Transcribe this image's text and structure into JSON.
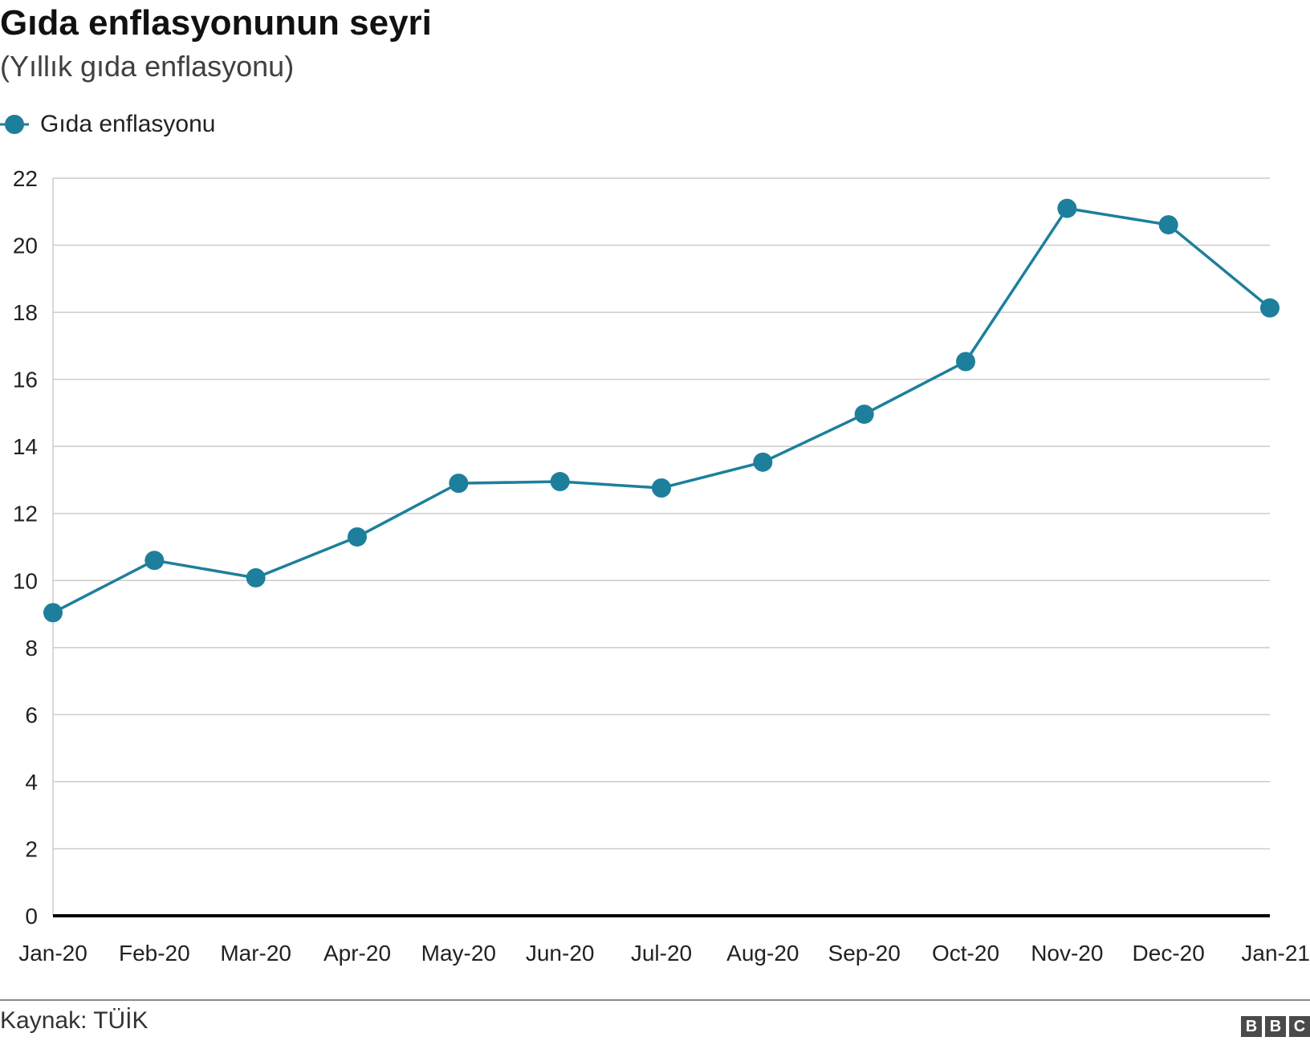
{
  "header": {
    "title": "Gıda enflasyonunun seyri",
    "subtitle": "(Yıllık gıda enflasyonu)"
  },
  "footer": {
    "source": "Kaynak: TÜİK",
    "logo_letters": [
      "B",
      "B",
      "C"
    ]
  },
  "colors": {
    "series": "#1d7f9c",
    "grid": "#cccccc",
    "axis": "#000000"
  },
  "chart_data": {
    "type": "line",
    "title": "Gıda enflasyonunun seyri",
    "subtitle": "(Yıllık gıda enflasyonu)",
    "categories": [
      "Jan-20",
      "Feb-20",
      "Mar-20",
      "Apr-20",
      "May-20",
      "Jun-20",
      "Jul-20",
      "Aug-20",
      "Sep-20",
      "Oct-20",
      "Nov-20",
      "Dec-20",
      "Jan-21"
    ],
    "series": [
      {
        "name": "Gıda enflasyonu",
        "values": [
          9.04,
          10.6,
          10.08,
          11.3,
          12.9,
          12.95,
          12.76,
          13.53,
          14.96,
          16.53,
          21.1,
          20.61,
          18.13
        ]
      }
    ],
    "ylim": [
      0,
      22
    ],
    "yticks": [
      0,
      2,
      4,
      6,
      8,
      10,
      12,
      14,
      16,
      18,
      20,
      22
    ],
    "legend": "top-left",
    "grid": true
  }
}
